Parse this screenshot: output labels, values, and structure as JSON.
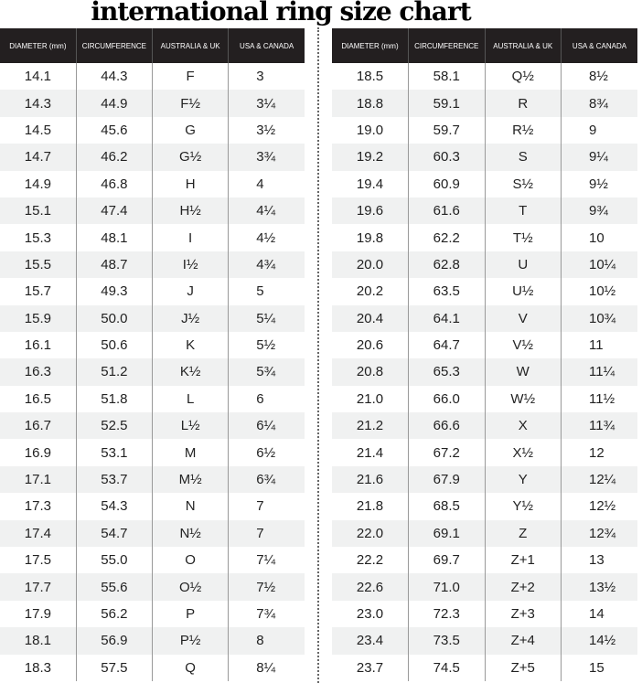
{
  "title": "international ring size chart",
  "headers": [
    "DIAMETER (mm)",
    "CIRCUMFERENCE",
    "AUSTRALIA & UK",
    "USA & CANADA"
  ],
  "left_rows": [
    [
      "14.1",
      "44.3",
      "F",
      "3"
    ],
    [
      "14.3",
      "44.9",
      "F½",
      "3¼"
    ],
    [
      "14.5",
      "45.6",
      "G",
      "3½"
    ],
    [
      "14.7",
      "46.2",
      "G½",
      "3¾"
    ],
    [
      "14.9",
      "46.8",
      "H",
      "4"
    ],
    [
      "15.1",
      "47.4",
      "H½",
      "4¼"
    ],
    [
      "15.3",
      "48.1",
      "I",
      "4½"
    ],
    [
      "15.5",
      "48.7",
      "I½",
      "4¾"
    ],
    [
      "15.7",
      "49.3",
      "J",
      "5"
    ],
    [
      "15.9",
      "50.0",
      "J½",
      "5¼"
    ],
    [
      "16.1",
      "50.6",
      "K",
      "5½"
    ],
    [
      "16.3",
      "51.2",
      "K½",
      "5¾"
    ],
    [
      "16.5",
      "51.8",
      "L",
      "6"
    ],
    [
      "16.7",
      "52.5",
      "L½",
      "6¼"
    ],
    [
      "16.9",
      "53.1",
      "M",
      "6½"
    ],
    [
      "17.1",
      "53.7",
      "M½",
      "6¾"
    ],
    [
      "17.3",
      "54.3",
      "N",
      "7"
    ],
    [
      "17.4",
      "54.7",
      "N½",
      "7"
    ],
    [
      "17.5",
      "55.0",
      "O",
      "7¼"
    ],
    [
      "17.7",
      "55.6",
      "O½",
      "7½"
    ],
    [
      "17.9",
      "56.2",
      "P",
      "7¾"
    ],
    [
      "18.1",
      "56.9",
      "P½",
      "8"
    ],
    [
      "18.3",
      "57.5",
      "Q",
      "8¼"
    ]
  ],
  "right_rows": [
    [
      "18.5",
      "58.1",
      "Q½",
      "8½"
    ],
    [
      "18.8",
      "59.1",
      "R",
      "8¾"
    ],
    [
      "19.0",
      "59.7",
      "R½",
      "9"
    ],
    [
      "19.2",
      "60.3",
      "S",
      "9¼"
    ],
    [
      "19.4",
      "60.9",
      "S½",
      "9½"
    ],
    [
      "19.6",
      "61.6",
      "T",
      "9¾"
    ],
    [
      "19.8",
      "62.2",
      "T½",
      "10"
    ],
    [
      "20.0",
      "62.8",
      "U",
      "10¼"
    ],
    [
      "20.2",
      "63.5",
      "U½",
      "10½"
    ],
    [
      "20.4",
      "64.1",
      "V",
      "10¾"
    ],
    [
      "20.6",
      "64.7",
      "V½",
      "11"
    ],
    [
      "20.8",
      "65.3",
      "W",
      "11¼"
    ],
    [
      "21.0",
      "66.0",
      "W½",
      "11½"
    ],
    [
      "21.2",
      "66.6",
      "X",
      "11¾"
    ],
    [
      "21.4",
      "67.2",
      "X½",
      "12"
    ],
    [
      "21.6",
      "67.9",
      "Y",
      "12¼"
    ],
    [
      "21.8",
      "68.5",
      "Y½",
      "12½"
    ],
    [
      "22.0",
      "69.1",
      "Z",
      "12¾"
    ],
    [
      "22.2",
      "69.7",
      "Z+1",
      "13"
    ],
    [
      "22.6",
      "71.0",
      "Z+2",
      "13½"
    ],
    [
      "23.0",
      "72.3",
      "Z+3",
      "14"
    ],
    [
      "23.4",
      "73.5",
      "Z+4",
      "14½"
    ],
    [
      "23.7",
      "74.5",
      "Z+5",
      "15"
    ]
  ]
}
